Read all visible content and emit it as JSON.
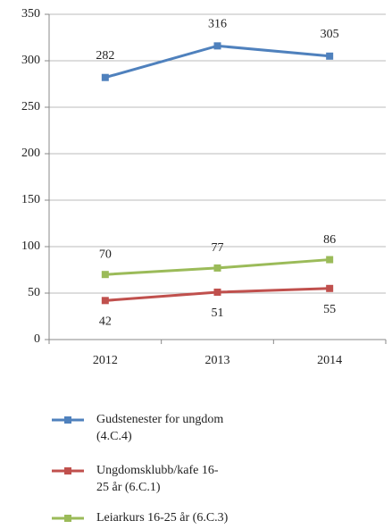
{
  "chart_data": {
    "type": "line",
    "categories": [
      "2012",
      "2013",
      "2014"
    ],
    "series": [
      {
        "name": "Gudstenester for ungdom (4.C.4)",
        "color": "#4f81bd",
        "values": [
          282,
          316,
          305
        ]
      },
      {
        "name": "Ungdomsklubb/kafe 16-25 år (6.C.1)",
        "color": "#c0504d",
        "values": [
          42,
          51,
          55
        ]
      },
      {
        "name": "Leiarkurs 16-25 år (6.C.3)",
        "color": "#9bbb59",
        "values": [
          70,
          77,
          86
        ]
      }
    ],
    "ylim": [
      0,
      350
    ],
    "yticks": [
      0,
      50,
      100,
      150,
      200,
      250,
      300,
      350
    ],
    "grid": true,
    "legend": "bottom"
  }
}
